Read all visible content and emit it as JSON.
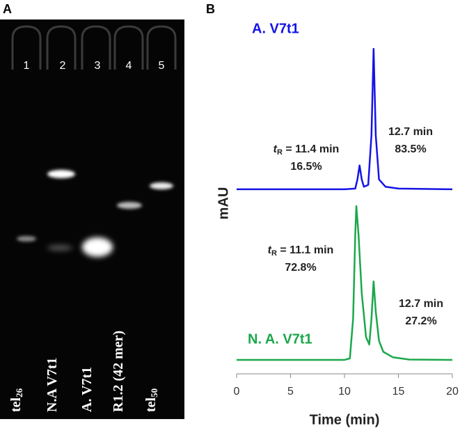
{
  "panel_a": {
    "label": "A",
    "lane_numbers": [
      "1",
      "2",
      "3",
      "4",
      "5"
    ],
    "lanes": [
      {
        "name": "tel",
        "sub": "26"
      },
      {
        "name": "N.A V7t1"
      },
      {
        "name": "A. V7t1"
      },
      {
        "name": "R1.2 (42 mer)"
      },
      {
        "name": "tel",
        "sub": "50"
      }
    ]
  },
  "panel_b_label": "B",
  "chart_data": {
    "type": "line",
    "x_label": "Time (min)",
    "y_label": "mAU",
    "xlim": [
      0,
      20
    ],
    "xticks": [
      0,
      5,
      10,
      15,
      20
    ],
    "ylim": [
      0,
      100
    ],
    "series": [
      {
        "name": "A. V7t1",
        "color": "#1414e6",
        "x": [
          0,
          10,
          11,
          11.2,
          11.4,
          11.6,
          11.8,
          12.2,
          12.5,
          12.7,
          12.9,
          13.2,
          13.8,
          15,
          20
        ],
        "values": [
          50.3,
          50.3,
          50.5,
          53,
          56.8,
          53,
          51,
          51.5,
          65,
          88.6,
          65,
          53,
          51,
          50.5,
          50.3
        ]
      },
      {
        "name": "N. A. V7t1",
        "color": "#1aa84a",
        "x": [
          0,
          10,
          10.5,
          10.8,
          11.0,
          11.1,
          11.3,
          11.6,
          12.0,
          12.3,
          12.5,
          12.7,
          12.9,
          13.2,
          13.6,
          14.5,
          16,
          20
        ],
        "values": [
          3.8,
          3.8,
          4.2,
          15,
          38,
          45.7,
          38,
          22,
          10,
          8,
          15,
          25.2,
          17,
          9,
          6,
          4.5,
          3.9,
          3.8
        ]
      }
    ],
    "annotations": [
      {
        "time_prefix": "t",
        "time_sub": "R",
        "time": " = 11.4 min",
        "area": "16.5%"
      },
      {
        "time": "12.7 min",
        "area": "83.5%"
      },
      {
        "time_prefix": "t",
        "time_sub": "R",
        "time": " = 11.1 min",
        "area": "72.8%"
      },
      {
        "time": "12.7 min",
        "area": "27.2%"
      }
    ]
  }
}
